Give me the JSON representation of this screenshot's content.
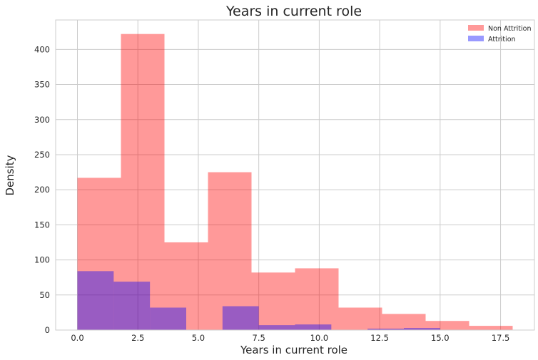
{
  "chart_data": {
    "type": "bar",
    "title": "Years in current role",
    "xlabel": "Years in current role",
    "ylabel": "Density",
    "xlim": [
      -0.9,
      18.9
    ],
    "ylim": [
      0,
      442
    ],
    "xticks": [
      0.0,
      2.5,
      5.0,
      7.5,
      10.0,
      12.5,
      15.0,
      17.5
    ],
    "xtick_labels": [
      "0.0",
      "2.5",
      "5.0",
      "7.5",
      "10.0",
      "12.5",
      "15.0",
      "17.5"
    ],
    "yticks": [
      0,
      50,
      100,
      150,
      200,
      250,
      300,
      350,
      400
    ],
    "ytick_labels": [
      "0",
      "50",
      "100",
      "150",
      "200",
      "250",
      "300",
      "350",
      "400"
    ],
    "grid": true,
    "legend_position": "top-right",
    "series": [
      {
        "name": "Non Attrition",
        "color": "#ff0000",
        "opacity": 0.4,
        "bin_edges": [
          0.0,
          1.8,
          3.6,
          5.4,
          7.2,
          9.0,
          10.8,
          12.6,
          14.4,
          16.2,
          18.0
        ],
        "values": [
          217,
          422,
          125,
          225,
          82,
          88,
          32,
          23,
          13,
          6
        ]
      },
      {
        "name": "Attrition",
        "color": "#0000ff",
        "opacity": 0.4,
        "bin_edges": [
          0.0,
          1.5,
          3.0,
          4.5,
          6.0,
          7.5,
          9.0,
          10.5,
          12.0,
          13.5,
          15.0
        ],
        "values": [
          84,
          69,
          32,
          0,
          34,
          7,
          8,
          0,
          2,
          3
        ]
      }
    ]
  }
}
